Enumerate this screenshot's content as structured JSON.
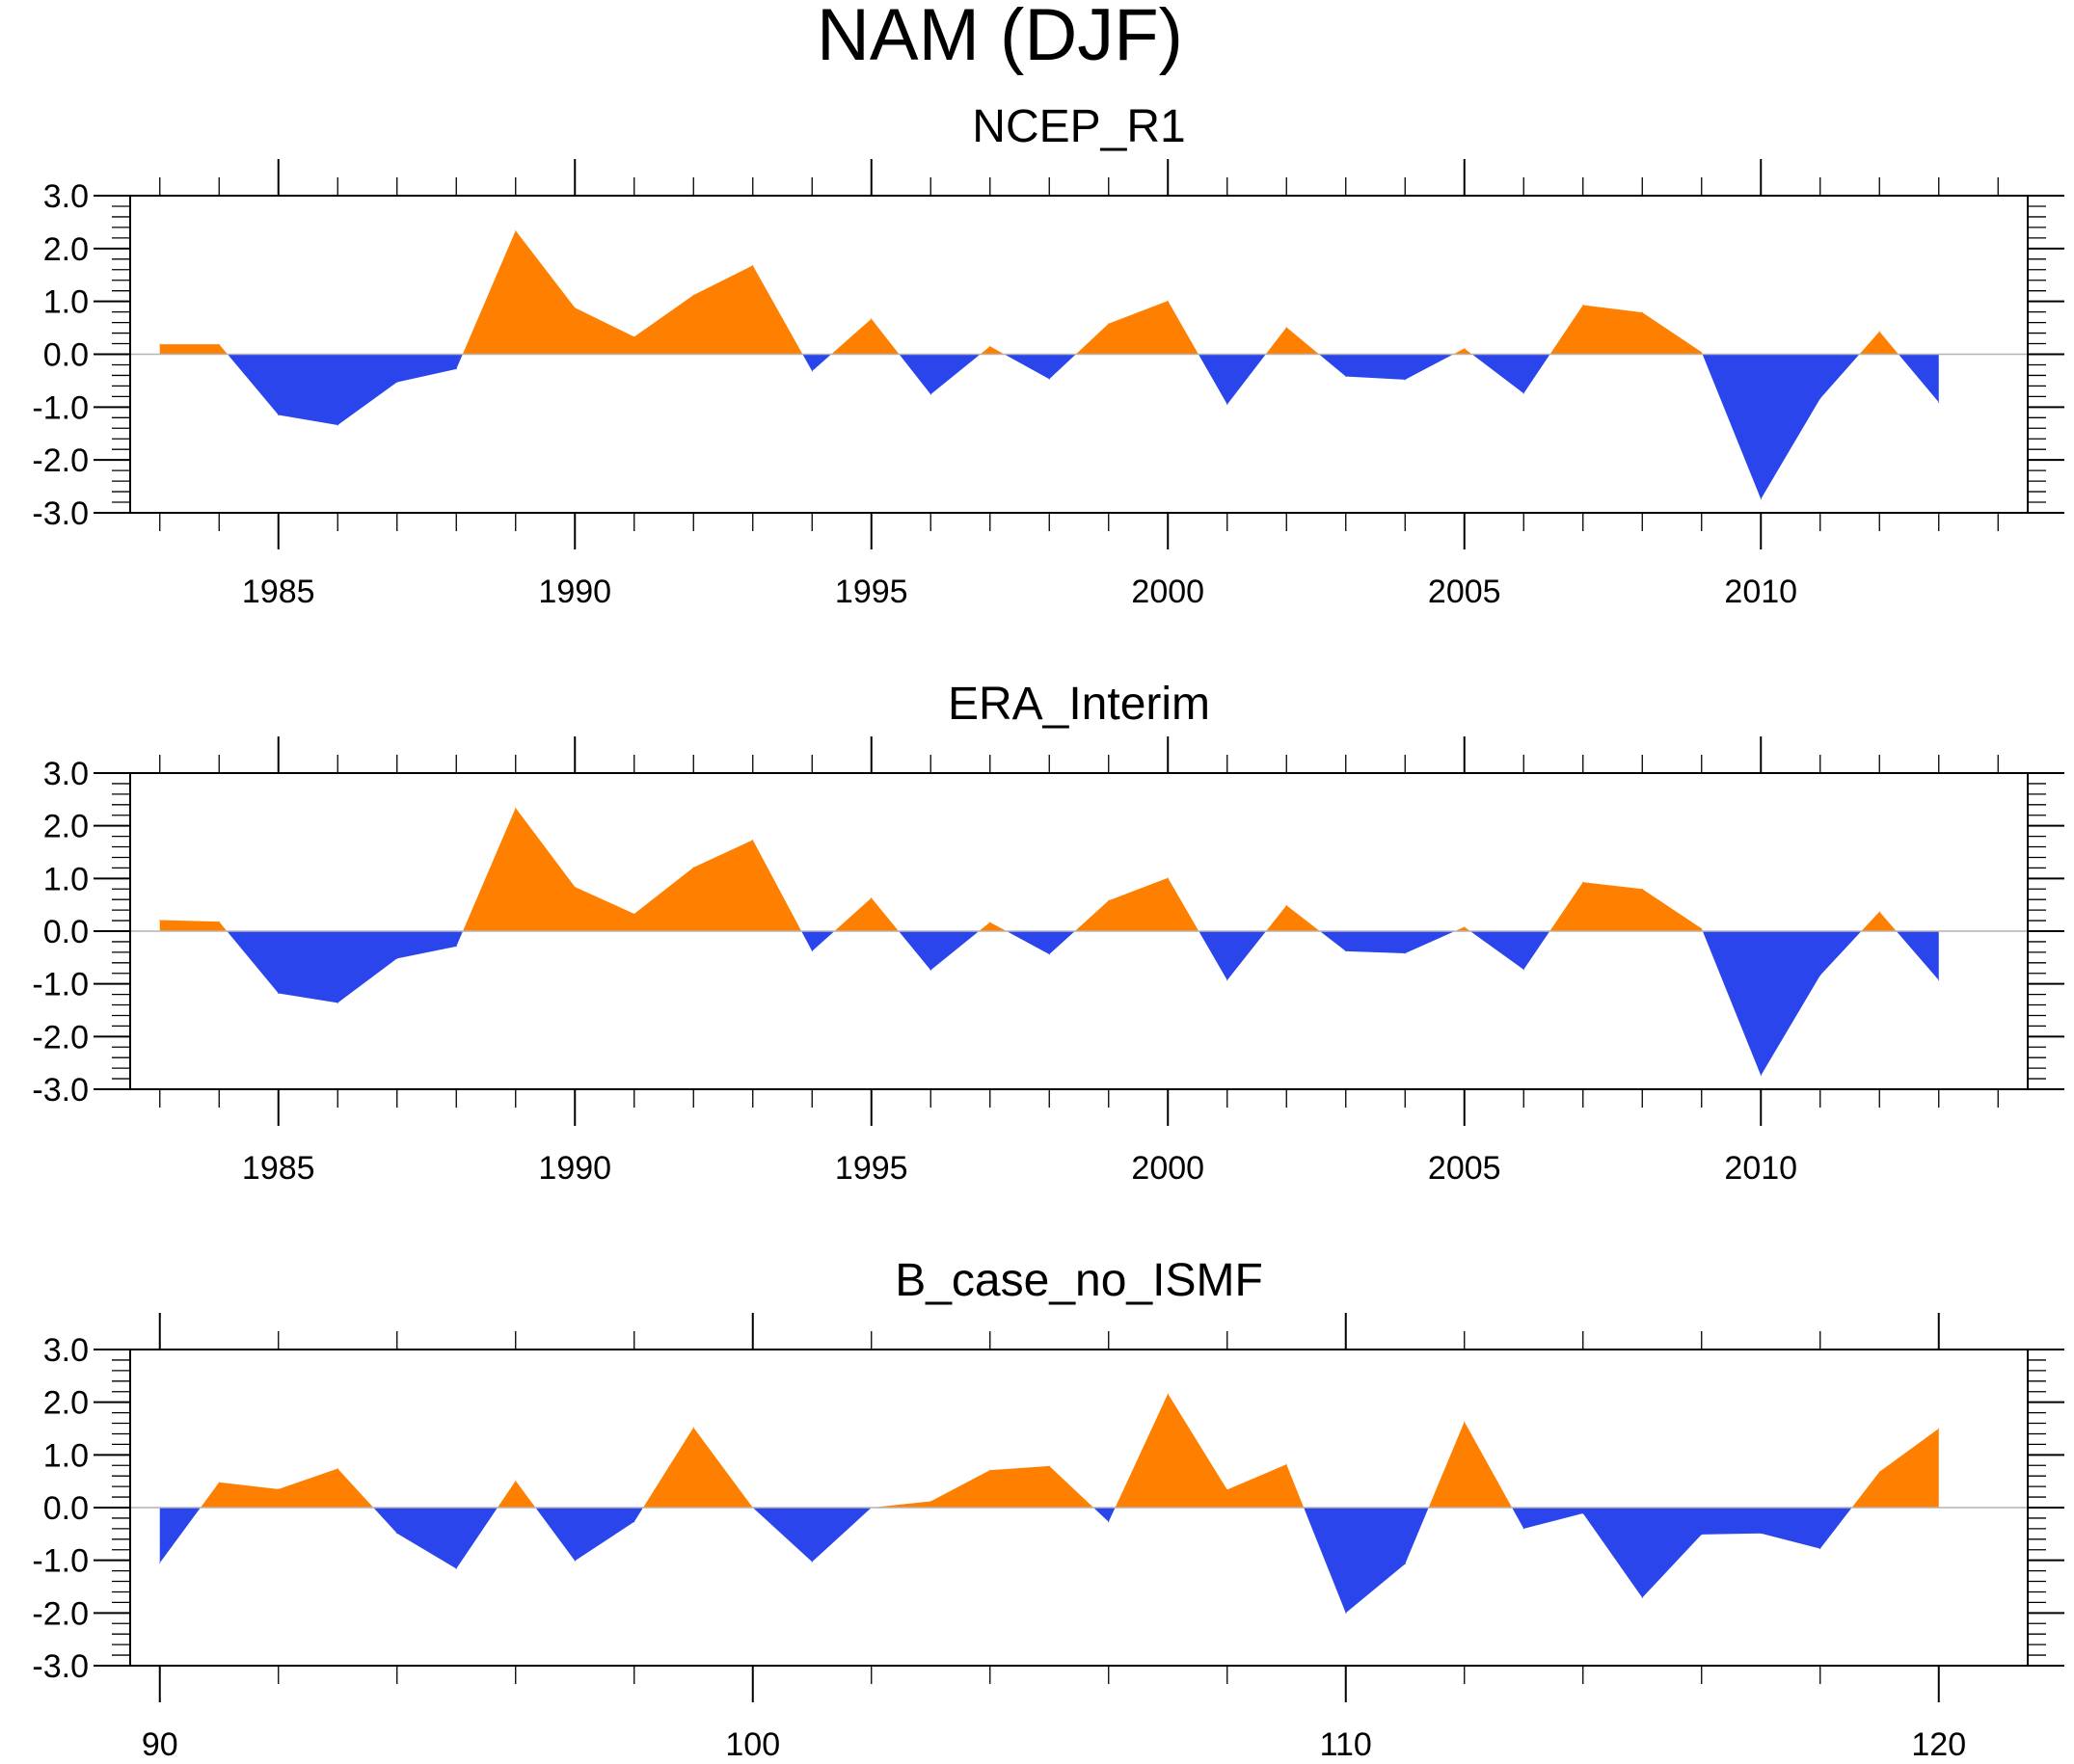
{
  "figure": {
    "title": "NAM (DJF)"
  },
  "colors": {
    "positive_fill": "#FF8000",
    "negative_fill": "#2A45EB",
    "axis": "#000000",
    "zero_line": "#B4B4B4"
  },
  "chart_data": [
    {
      "type": "area",
      "title": "NCEP_R1",
      "xlabel": "",
      "ylabel": "",
      "xlim": [
        1982.5,
        2014.5
      ],
      "ylim": [
        -3.0,
        3.0
      ],
      "x_major_ticks": [
        1985,
        1990,
        1995,
        2000,
        2005,
        2010
      ],
      "x_tick_labels": [
        "1985",
        "1990",
        "1995",
        "2000",
        "2005",
        "2010"
      ],
      "x_minor_step": 1,
      "y_ticks": [
        3.0,
        2.0,
        1.0,
        0.0,
        -1.0,
        -2.0,
        -3.0
      ],
      "y_tick_labels": [
        "3.0",
        "2.0",
        "1.0",
        "0.0",
        "-1.0",
        "-2.0",
        "-3.0"
      ],
      "y_minor_step": 0.2,
      "reference_line": 0.0,
      "fill_above": "positive_fill",
      "fill_below": "negative_fill",
      "grid": false,
      "legend": "none",
      "x": [
        1983,
        1984,
        1985,
        1986,
        1987,
        1988,
        1989,
        1990,
        1991,
        1992,
        1993,
        1994,
        1995,
        1996,
        1997,
        1998,
        1999,
        2000,
        2001,
        2002,
        2003,
        2004,
        2005,
        2006,
        2007,
        2008,
        2009,
        2010,
        2011,
        2012,
        2013
      ],
      "values": [
        0.19,
        0.19,
        -1.15,
        -1.34,
        -0.53,
        -0.28,
        2.34,
        0.88,
        0.33,
        1.12,
        1.68,
        -0.32,
        0.67,
        -0.76,
        0.15,
        -0.47,
        0.58,
        1.01,
        -0.95,
        0.51,
        -0.42,
        -0.48,
        0.11,
        -0.74,
        0.93,
        0.79,
        0.04,
        -2.74,
        -0.84,
        0.43,
        -0.91
      ]
    },
    {
      "type": "area",
      "title": "ERA_Interim",
      "xlabel": "",
      "ylabel": "",
      "xlim": [
        1982.5,
        2014.5
      ],
      "ylim": [
        -3.0,
        3.0
      ],
      "x_major_ticks": [
        1985,
        1990,
        1995,
        2000,
        2005,
        2010
      ],
      "x_tick_labels": [
        "1985",
        "1990",
        "1995",
        "2000",
        "2005",
        "2010"
      ],
      "x_minor_step": 1,
      "y_ticks": [
        3.0,
        2.0,
        1.0,
        0.0,
        -1.0,
        -2.0,
        -3.0
      ],
      "y_tick_labels": [
        "3.0",
        "2.0",
        "1.0",
        "0.0",
        "-1.0",
        "-2.0",
        "-3.0"
      ],
      "y_minor_step": 0.2,
      "reference_line": 0.0,
      "fill_above": "positive_fill",
      "fill_below": "negative_fill",
      "grid": false,
      "legend": "none",
      "x": [
        1983,
        1984,
        1985,
        1986,
        1987,
        1988,
        1989,
        1990,
        1991,
        1992,
        1993,
        1994,
        1995,
        1996,
        1997,
        1998,
        1999,
        2000,
        2001,
        2002,
        2003,
        2004,
        2005,
        2006,
        2007,
        2008,
        2009,
        2010,
        2011,
        2012,
        2013
      ],
      "values": [
        0.21,
        0.18,
        -1.18,
        -1.36,
        -0.52,
        -0.29,
        2.34,
        0.84,
        0.33,
        1.21,
        1.73,
        -0.38,
        0.63,
        -0.74,
        0.17,
        -0.44,
        0.58,
        1.01,
        -0.93,
        0.49,
        -0.38,
        -0.42,
        0.08,
        -0.73,
        0.93,
        0.8,
        0.05,
        -2.74,
        -0.84,
        0.37,
        -0.93
      ]
    },
    {
      "type": "area",
      "title": "B_case_no_ISMF",
      "xlabel": "",
      "ylabel": "",
      "xlim": [
        89.5,
        121.5
      ],
      "ylim": [
        -3.0,
        3.0
      ],
      "x_major_ticks": [
        90,
        100,
        110,
        120
      ],
      "x_tick_labels": [
        "90",
        "100",
        "110",
        "120"
      ],
      "x_minor_step": 2,
      "y_ticks": [
        3.0,
        2.0,
        1.0,
        0.0,
        -1.0,
        -2.0,
        -3.0
      ],
      "y_tick_labels": [
        "3.0",
        "2.0",
        "1.0",
        "0.0",
        "-1.0",
        "-2.0",
        "-3.0"
      ],
      "y_minor_step": 0.2,
      "reference_line": 0.0,
      "fill_above": "positive_fill",
      "fill_below": "negative_fill",
      "grid": false,
      "legend": "none",
      "x": [
        90,
        91,
        92,
        93,
        94,
        95,
        96,
        97,
        98,
        99,
        100,
        101,
        102,
        103,
        104,
        105,
        106,
        107,
        108,
        109,
        110,
        111,
        112,
        113,
        114,
        115,
        116,
        117,
        118,
        119,
        120
      ],
      "values": [
        -1.05,
        0.48,
        0.35,
        0.74,
        -0.49,
        -1.16,
        0.51,
        -1.01,
        -0.27,
        1.52,
        0.0,
        -1.03,
        0.0,
        0.12,
        0.71,
        0.79,
        -0.27,
        2.16,
        0.34,
        0.82,
        -2.0,
        -1.07,
        1.63,
        -0.4,
        -0.11,
        -1.71,
        -0.51,
        -0.49,
        -0.78,
        0.68,
        1.5
      ]
    }
  ]
}
